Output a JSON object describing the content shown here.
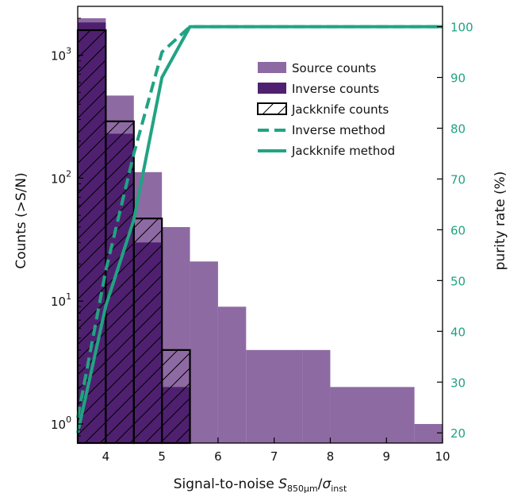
{
  "chart_data": {
    "type": "bar",
    "xlabel": {
      "prefix": "Signal-to-noise ",
      "s": "S",
      "s_sub": "850μm",
      "slash": "/",
      "sigma": "σ",
      "sigma_sub": "inst"
    },
    "ylabel": "Counts (>S/N)",
    "y2label": "purity rate (%)",
    "xlim": [
      3.5,
      10
    ],
    "ylim": [
      0.7,
      2500
    ],
    "yscale": "log",
    "y2lim": [
      18,
      104
    ],
    "xticks": [
      "4",
      "5",
      "6",
      "7",
      "8",
      "9",
      "10"
    ],
    "yticks": [
      {
        "base": "10",
        "exp": "0"
      },
      {
        "base": "10",
        "exp": "1"
      },
      {
        "base": "10",
        "exp": "2"
      },
      {
        "base": "10",
        "exp": "3"
      }
    ],
    "y2ticks": [
      "20",
      "30",
      "40",
      "50",
      "60",
      "70",
      "80",
      "90",
      "100"
    ],
    "colors": {
      "source": "#8e6aa3",
      "inverse": "#4f2070",
      "jackknife_edge": "#000000",
      "purity": "#21a383"
    },
    "legend": {
      "position": "upper right",
      "entries": [
        {
          "key": "source",
          "label": "Source counts"
        },
        {
          "key": "inverse",
          "label": "Inverse counts"
        },
        {
          "key": "jackknife",
          "label": "Jackknife counts"
        },
        {
          "key": "inverse_method",
          "label": "Inverse method"
        },
        {
          "key": "jackknife_method",
          "label": "Jackknife method"
        }
      ]
    },
    "source_counts": {
      "name": "Source counts",
      "bins": [
        {
          "x0": 3.5,
          "x1": 4.0,
          "value": 2000
        },
        {
          "x0": 4.0,
          "x1": 4.5,
          "value": 470
        },
        {
          "x0": 4.5,
          "x1": 5.0,
          "value": 112
        },
        {
          "x0": 5.0,
          "x1": 5.5,
          "value": 40
        },
        {
          "x0": 5.5,
          "x1": 6.0,
          "value": 21
        },
        {
          "x0": 6.0,
          "x1": 6.5,
          "value": 9
        },
        {
          "x0": 6.5,
          "x1": 7.5,
          "value": 4
        },
        {
          "x0": 7.5,
          "x1": 8.0,
          "value": 4
        },
        {
          "x0": 8.0,
          "x1": 9.5,
          "value": 2
        },
        {
          "x0": 9.5,
          "x1": 10.0,
          "value": 1
        }
      ]
    },
    "inverse_counts": {
      "name": "Inverse counts",
      "bins": [
        {
          "x0": 3.5,
          "x1": 4.0,
          "value": 1850
        },
        {
          "x0": 4.0,
          "x1": 4.5,
          "value": 230
        },
        {
          "x0": 4.5,
          "x1": 5.0,
          "value": 30
        },
        {
          "x0": 5.0,
          "x1": 5.5,
          "value": 2
        }
      ]
    },
    "jackknife_counts": {
      "name": "Jackknife counts",
      "bins": [
        {
          "x0": 3.5,
          "x1": 4.0,
          "value": 1600
        },
        {
          "x0": 4.0,
          "x1": 4.5,
          "value": 290
        },
        {
          "x0": 4.5,
          "x1": 5.0,
          "value": 47
        },
        {
          "x0": 5.0,
          "x1": 5.5,
          "value": 4
        }
      ]
    },
    "purity_inverse": {
      "name": "Inverse method",
      "x": [
        3.5,
        4.0,
        4.5,
        5.0,
        5.5,
        10.0
      ],
      "y": [
        23,
        52,
        75,
        95,
        100,
        100
      ]
    },
    "purity_jackknife": {
      "name": "Jackknife method",
      "x": [
        3.5,
        4.0,
        4.5,
        5.0,
        5.5,
        10.0
      ],
      "y": [
        20,
        45,
        62,
        90,
        100,
        100
      ]
    }
  }
}
